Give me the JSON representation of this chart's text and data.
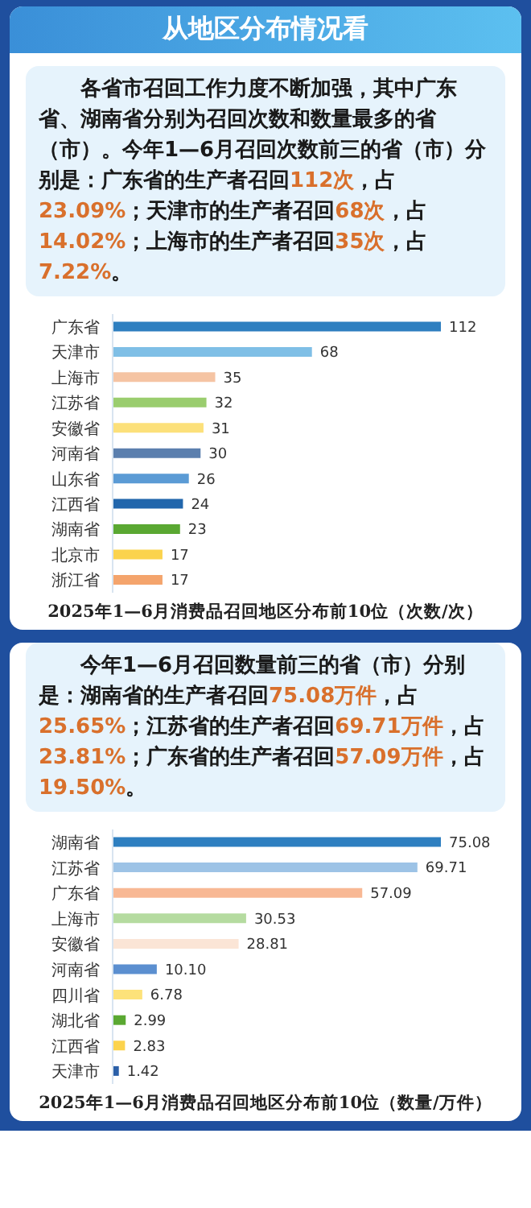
{
  "chart_data": [
    {
      "type": "bar",
      "orientation": "horizontal",
      "title": "从地区分布情况看",
      "subtitle": "各省市召回工作力度不断加强，其中广东省、湖南省分别为召回次数和数量最多的省（市）。今年1—6月召回次数前三的省（市）分别是：广东省的生产者召回112次，占23.09%；天津市的生产者召回68次，占14.02%；上海市的生产者召回35次，占7.22%。",
      "categories": [
        "广东省",
        "天津市",
        "上海市",
        "江苏省",
        "安徽省",
        "河南省",
        "山东省",
        "江西省",
        "湖南省",
        "北京市",
        "浙江省"
      ],
      "values": [
        112,
        68,
        35,
        32,
        31,
        30,
        26,
        24,
        23,
        17,
        17
      ],
      "colors": [
        "#2e7fc0",
        "#7fbfe6",
        "#f5c4a3",
        "#9acd6e",
        "#fce07a",
        "#5b7fae",
        "#5b9bd5",
        "#2166ac",
        "#5aa832",
        "#fbd34d",
        "#f4a46c"
      ],
      "data_labels": true,
      "annotations": [
        "2025年1—6月消费品召回地区分布前10位（次数/次）"
      ]
    },
    {
      "type": "bar",
      "orientation": "horizontal",
      "subtitle": "今年1—6月召回数量前三的省（市）分别是：湖南省的生产者召回75.08万件，占25.65%；江苏省的生产者召回69.71万件，占23.81%；广东省的生产者召回57.09万件，占19.50%。",
      "categories": [
        "湖南省",
        "江苏省",
        "广东省",
        "上海市",
        "安徽省",
        "河南省",
        "四川省",
        "湖北省",
        "江西省",
        "天津市"
      ],
      "values": [
        75.08,
        69.71,
        57.09,
        30.53,
        28.81,
        10.1,
        6.78,
        2.99,
        2.83,
        1.42
      ],
      "value_labels": [
        "75.08",
        "69.71",
        "57.09",
        "30.53",
        "28.81",
        "10.10",
        "6.78",
        "2.99",
        "2.83",
        "1.42"
      ],
      "colors": [
        "#2e7fc0",
        "#9dc3e6",
        "#f8b894",
        "#b5dba0",
        "#fbe5d6",
        "#5b8fd0",
        "#fde27a",
        "#5aa832",
        "#fcd34d",
        "#2a5fa8"
      ],
      "annotations": [
        "2025年1—6月消费品召回地区分布前10位（数量/万件）"
      ]
    }
  ]
}
